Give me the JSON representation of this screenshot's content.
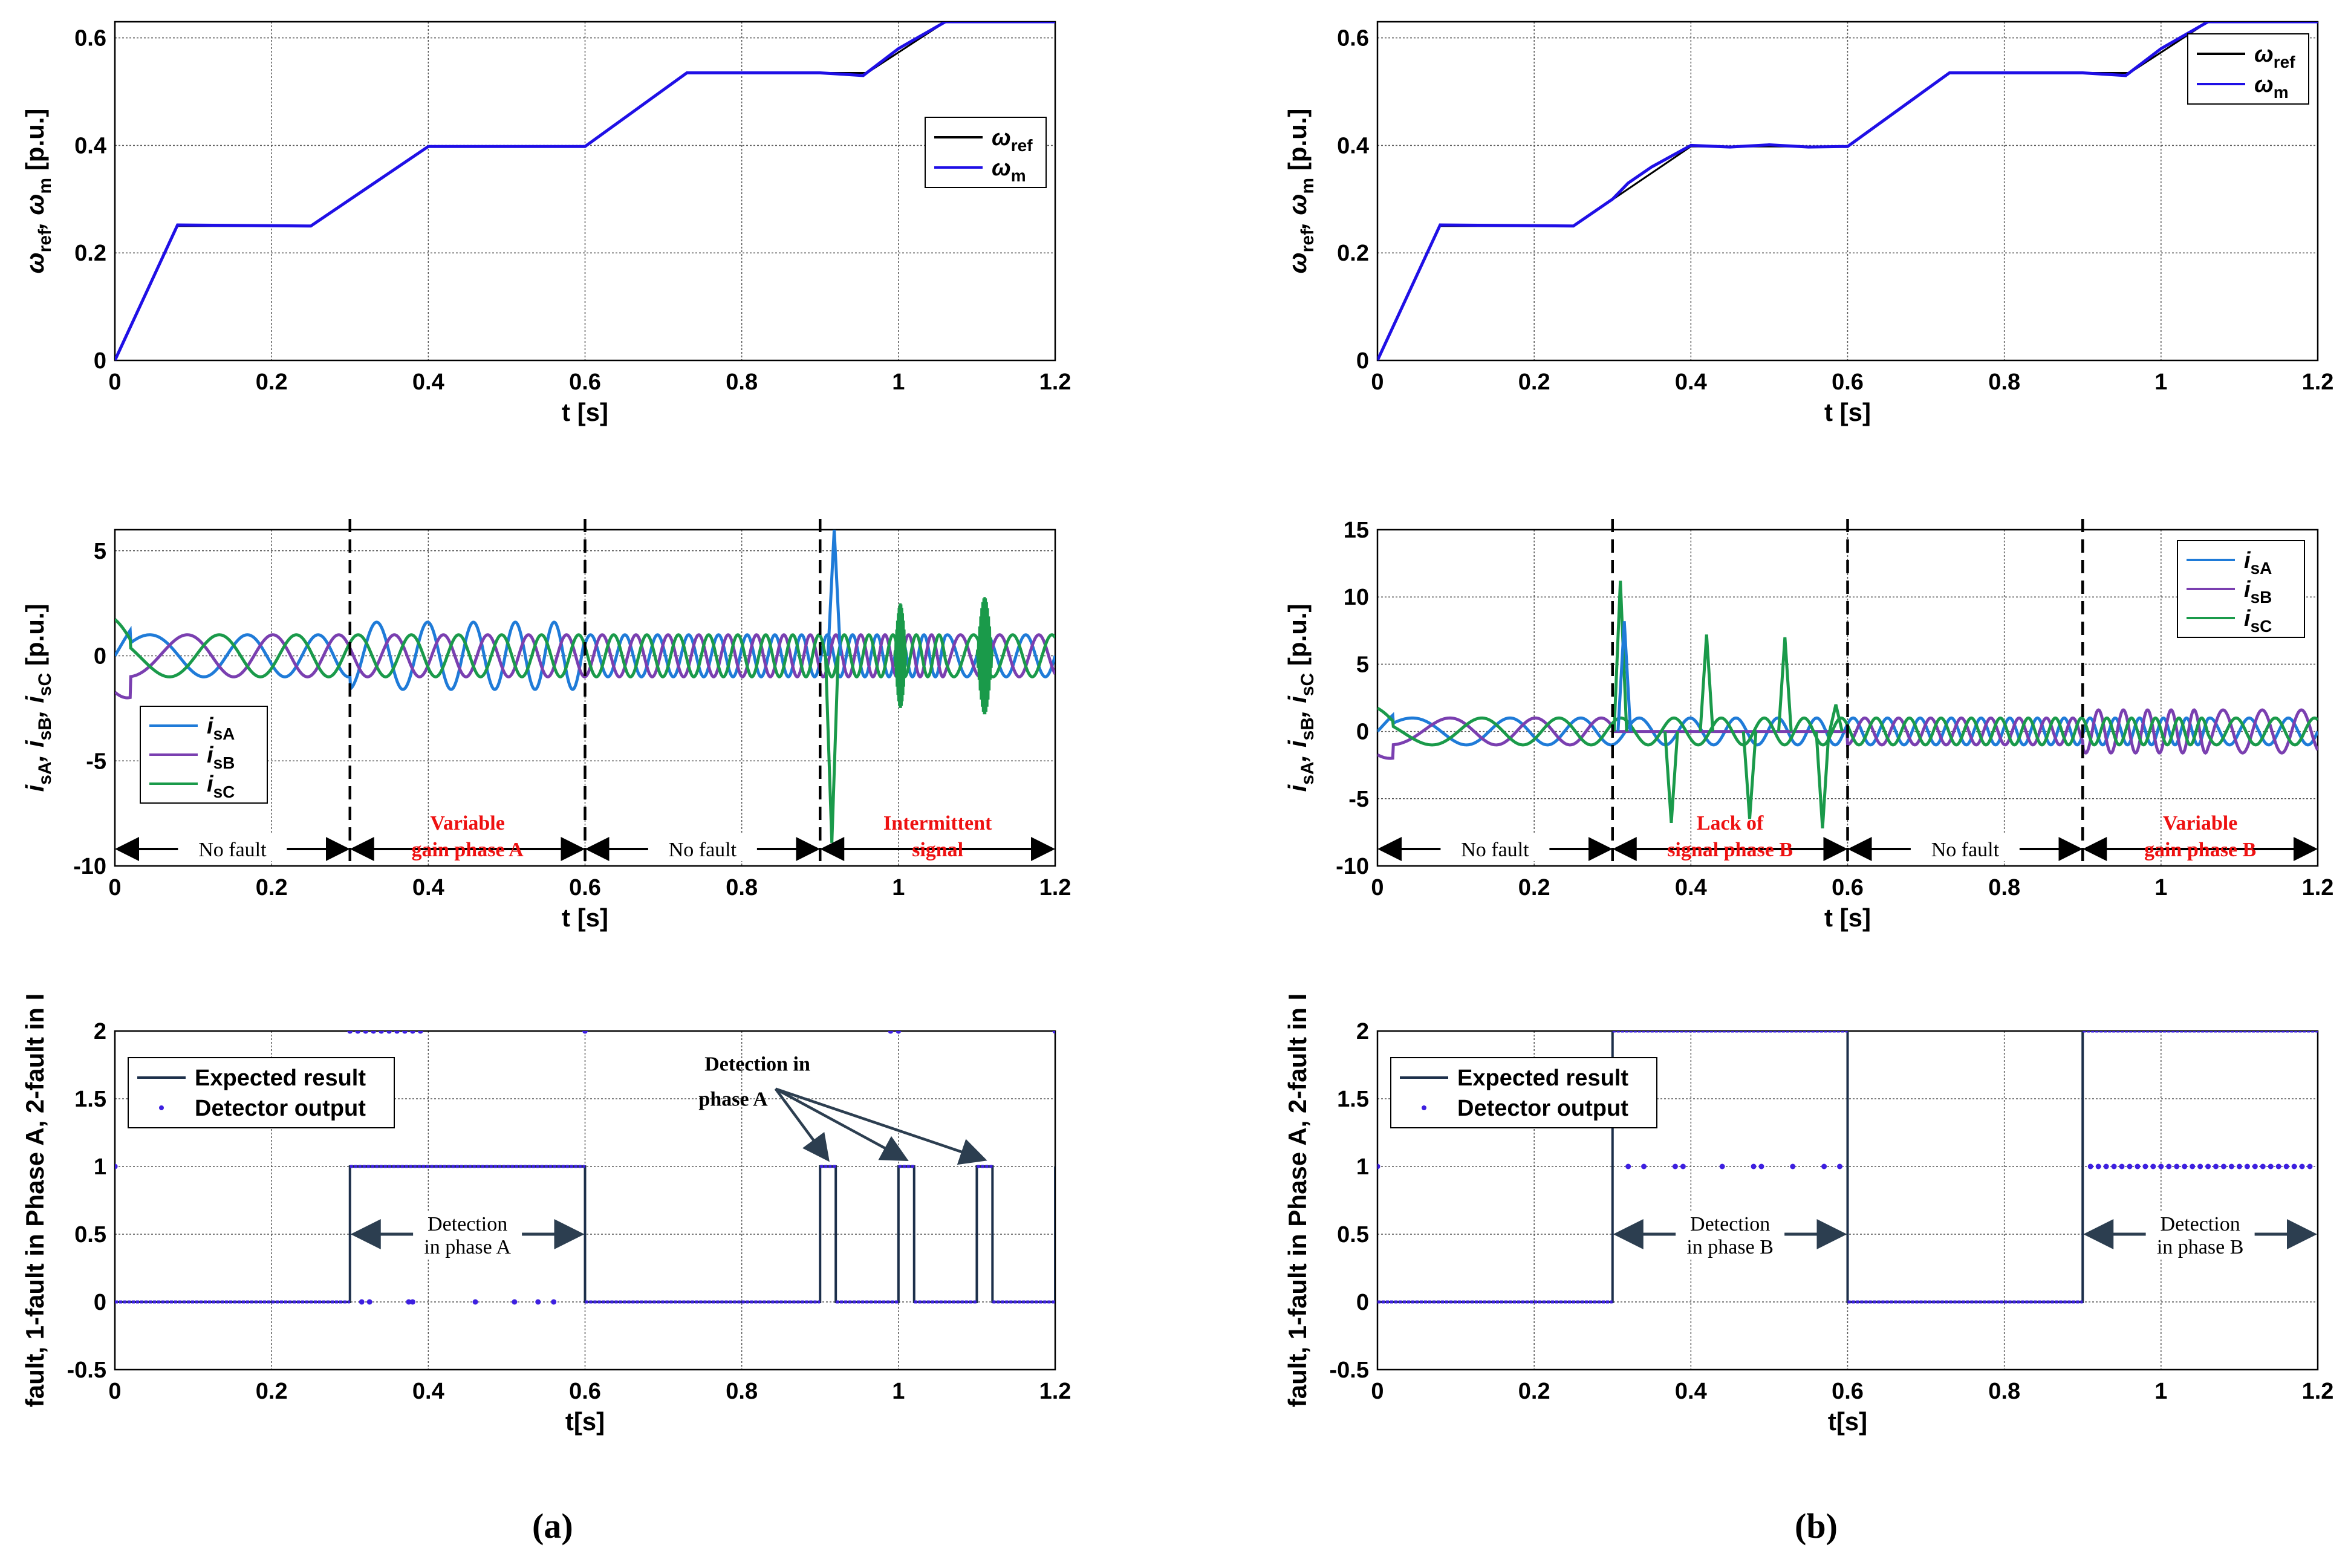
{
  "figure": {
    "panel_labels": [
      "(a)",
      "(b)"
    ]
  },
  "colors": {
    "ref": "#000000",
    "wm": "#1f0fe6",
    "isA": "#1f7bd8",
    "isB": "#7a3fb0",
    "isC": "#1a9a4a",
    "expected": "#1c2f4a",
    "detector": "#3d1fe0",
    "annotation_red": "#ee1111",
    "grid": "#555555"
  },
  "chart_data": [
    {
      "id": "a-speed",
      "type": "line",
      "xlabel": "t [s]",
      "ylabel_parts": [
        "ω",
        "ref",
        ", ω",
        "m",
        " [p.u.]"
      ],
      "xlim": [
        0,
        1.2
      ],
      "ylim": [
        0,
        0.63
      ],
      "xticks": [
        0,
        0.2,
        0.4,
        0.6,
        0.8,
        1,
        1.2
      ],
      "xtick_labels": [
        "0",
        "0.2",
        "0.4",
        "0.6",
        "0.8",
        "1",
        "1.2"
      ],
      "yticks": [
        0,
        0.2,
        0.4,
        0.6
      ],
      "ytick_labels": [
        "0",
        "0.2",
        "0.4",
        "0.6"
      ],
      "legend_position": "center-right",
      "series": [
        {
          "name": "ω_ref",
          "legend_main": "ω",
          "legend_sub": "ref",
          "color_key": "ref",
          "x": [
            0,
            0.08,
            0.25,
            0.4,
            0.6,
            0.73,
            0.96,
            1.06,
            1.2
          ],
          "y": [
            0,
            0.25,
            0.25,
            0.398,
            0.398,
            0.535,
            0.535,
            0.63,
            0.63
          ]
        },
        {
          "name": "ω_m",
          "legend_main": "ω",
          "legend_sub": "m",
          "color_key": "wm",
          "x": [
            0,
            0.08,
            0.25,
            0.4,
            0.6,
            0.73,
            0.9,
            0.955,
            1.0,
            1.06,
            1.2
          ],
          "y": [
            0,
            0.252,
            0.25,
            0.398,
            0.398,
            0.535,
            0.535,
            0.53,
            0.58,
            0.63,
            0.63
          ]
        }
      ]
    },
    {
      "id": "a-current",
      "type": "line",
      "xlabel": "t [s]",
      "ylabel_parts": [
        "i",
        "sA",
        ", i",
        "sB",
        ", i",
        "sC",
        " [p.u.]"
      ],
      "xlim": [
        0,
        1.2
      ],
      "ylim": [
        -10,
        6
      ],
      "xticks": [
        0,
        0.2,
        0.4,
        0.6,
        0.8,
        1,
        1.2
      ],
      "xtick_labels": [
        "0",
        "0.2",
        "0.4",
        "0.6",
        "0.8",
        "1",
        "1.2"
      ],
      "yticks": [
        -10,
        -5,
        0,
        5
      ],
      "ytick_labels": [
        "-10",
        "-5",
        "0",
        "5"
      ],
      "legend_position": "bottom-left",
      "waveform": {
        "freq_base": 5,
        "freq_gain": 15,
        "amplitude": 1.0
      },
      "events": [
        {
          "kind": "spike_down",
          "t": 0.915,
          "series": 2,
          "value": -8.9
        },
        {
          "kind": "spike_up",
          "t": 0.918,
          "series": 0,
          "value": 6.0
        },
        {
          "kind": "noise",
          "t0": 0.995,
          "t1": 1.01,
          "series": 2,
          "amp": 2.5
        },
        {
          "kind": "noise",
          "t0": 1.1,
          "t1": 1.12,
          "series": 2,
          "amp": 2.8
        }
      ],
      "fault_lines": [
        0.3,
        0.6,
        0.9
      ],
      "annotations": [
        {
          "text": [
            "No fault"
          ],
          "t0": 0,
          "t1": 0.3,
          "color_key": "ref"
        },
        {
          "text": [
            "Variable",
            "gain phase A"
          ],
          "t0": 0.3,
          "t1": 0.6,
          "color_key": "annotation_red"
        },
        {
          "text": [
            "No fault"
          ],
          "t0": 0.6,
          "t1": 0.9,
          "color_key": "ref"
        },
        {
          "text": [
            "Intermittent",
            "signal"
          ],
          "t0": 0.9,
          "t1": 1.2,
          "color_key": "annotation_red"
        }
      ],
      "series": [
        {
          "name": "i_sA",
          "legend_main": "i",
          "legend_sub": "sA",
          "color_key": "isA",
          "phase_deg": 0
        },
        {
          "name": "i_sB",
          "legend_main": "i",
          "legend_sub": "sB",
          "color_key": "isB",
          "phase_deg": -120
        },
        {
          "name": "i_sC",
          "legend_main": "i",
          "legend_sub": "sC",
          "color_key": "isC",
          "phase_deg": 120
        }
      ]
    },
    {
      "id": "a-fault",
      "type": "line",
      "xlabel": "t[s]",
      "ylabel_parts": [
        "fault, 1-fault in Phase A, 2-fault in I"
      ],
      "xlim": [
        0,
        1.2
      ],
      "ylim": [
        -0.5,
        2
      ],
      "xticks": [
        0,
        0.2,
        0.4,
        0.6,
        0.8,
        1,
        1.2
      ],
      "xtick_labels": [
        "0",
        "0.2",
        "0.4",
        "0.6",
        "0.8",
        "1",
        "1.2"
      ],
      "yticks": [
        -0.5,
        0,
        0.5,
        1,
        1.5,
        2
      ],
      "ytick_labels": [
        "-0.5",
        "0",
        "0.5",
        "1",
        "1.5",
        "2"
      ],
      "legend_position": "top-left",
      "series": [
        {
          "name": "Expected result",
          "color_key": "expected",
          "style": "line",
          "x": [
            0,
            0.3,
            0.3,
            0.6,
            0.6,
            0.9,
            0.9,
            0.92,
            0.92,
            1.0,
            1.0,
            1.02,
            1.02,
            1.1,
            1.1,
            1.12,
            1.12,
            1.2,
            1.2
          ],
          "y": [
            0,
            0,
            1,
            1,
            0,
            0,
            1,
            1,
            0,
            0,
            1,
            1,
            0,
            0,
            1,
            1,
            0,
            0,
            1
          ]
        },
        {
          "name": "Detector output",
          "color_key": "detector",
          "style": "dots",
          "segments": [
            {
              "x0": 0,
              "x1": 0.3,
              "y": 0
            },
            {
              "x0": 0.3,
              "x1": 0.6,
              "y": 1
            },
            {
              "x0": 0.6,
              "x1": 0.9,
              "y": 0
            },
            {
              "x0": 0.9,
              "x1": 0.92,
              "y": 1
            },
            {
              "x0": 0.92,
              "x1": 1.0,
              "y": 0
            },
            {
              "x0": 1.0,
              "x1": 1.02,
              "y": 1
            },
            {
              "x0": 1.02,
              "x1": 1.1,
              "y": 0
            },
            {
              "x0": 1.1,
              "x1": 1.12,
              "y": 1
            },
            {
              "x0": 1.12,
              "x1": 1.2,
              "y": 0
            }
          ],
          "scatter_x": [
            0,
            0.3,
            0.31,
            0.32,
            0.33,
            0.34,
            0.35,
            0.36,
            0.37,
            0.38,
            0.39,
            0.6,
            0.99,
            1.0,
            1.2,
            0.315,
            0.325,
            0.375,
            0.38,
            0.46,
            0.51,
            0.54,
            0.56,
            0.0
          ],
          "scatter_y": [
            1,
            2,
            2,
            2,
            2,
            2,
            2,
            2,
            2,
            2,
            2,
            2,
            2,
            2,
            2,
            0,
            0,
            0,
            0,
            0,
            0,
            0,
            0,
            1
          ]
        }
      ],
      "annotations": [
        {
          "text": [
            "Detection",
            "in phase A"
          ],
          "kind": "double_arrow",
          "t0": 0.3,
          "t1": 0.6,
          "y": 0.5
        },
        {
          "text": [
            "Detection in",
            "phase A"
          ],
          "kind": "pointer",
          "tx": 0.82,
          "ty": 1.6,
          "targets": [
            [
              0.91,
              1.05
            ],
            [
              1.01,
              1.05
            ],
            [
              1.11,
              1.05
            ]
          ]
        }
      ]
    },
    {
      "id": "b-speed",
      "type": "line",
      "xlabel": "t [s]",
      "ylabel_parts": [
        "ω",
        "ref",
        ", ω",
        "m",
        " [p.u.]"
      ],
      "xlim": [
        0,
        1.2
      ],
      "ylim": [
        0,
        0.63
      ],
      "xticks": [
        0,
        0.2,
        0.4,
        0.6,
        0.8,
        1,
        1.2
      ],
      "xtick_labels": [
        "0",
        "0.2",
        "0.4",
        "0.6",
        "0.8",
        "1",
        "1.2"
      ],
      "yticks": [
        0,
        0.2,
        0.4,
        0.6
      ],
      "ytick_labels": [
        "0",
        "0.2",
        "0.4",
        "0.6"
      ],
      "legend_position": "top-right",
      "series": [
        {
          "name": "ω_ref",
          "legend_main": "ω",
          "legend_sub": "ref",
          "color_key": "ref",
          "x": [
            0,
            0.08,
            0.25,
            0.4,
            0.6,
            0.73,
            0.96,
            1.06,
            1.2
          ],
          "y": [
            0,
            0.25,
            0.25,
            0.398,
            0.398,
            0.535,
            0.535,
            0.63,
            0.63
          ]
        },
        {
          "name": "ω_m",
          "legend_main": "ω",
          "legend_sub": "m",
          "color_key": "wm",
          "x": [
            0,
            0.08,
            0.25,
            0.3,
            0.32,
            0.35,
            0.4,
            0.45,
            0.5,
            0.55,
            0.6,
            0.73,
            0.9,
            0.955,
            1.0,
            1.06,
            1.2
          ],
          "y": [
            0,
            0.252,
            0.25,
            0.3,
            0.33,
            0.36,
            0.4,
            0.397,
            0.401,
            0.397,
            0.398,
            0.535,
            0.535,
            0.53,
            0.58,
            0.63,
            0.63
          ]
        }
      ]
    },
    {
      "id": "b-current",
      "type": "line",
      "xlabel": "t [s]",
      "ylabel_parts": [
        "i",
        "sA",
        ", i",
        "sB",
        ", i",
        "sC",
        " [p.u.]"
      ],
      "xlim": [
        0,
        1.2
      ],
      "ylim": [
        -10,
        15
      ],
      "xticks": [
        0,
        0.2,
        0.4,
        0.6,
        0.8,
        1,
        1.2
      ],
      "xtick_labels": [
        "0",
        "0.2",
        "0.4",
        "0.6",
        "0.8",
        "1",
        "1.2"
      ],
      "yticks": [
        -10,
        -5,
        0,
        5,
        10,
        15
      ],
      "ytick_labels": [
        "-10",
        "-5",
        "0",
        "5",
        "10",
        "15"
      ],
      "legend_position": "top-right",
      "waveform": {
        "freq_base": 5,
        "freq_gain": 15,
        "amplitude": 1.0
      },
      "events": [
        {
          "kind": "pulse",
          "t": 0.31,
          "series": 2,
          "value": 11.2
        },
        {
          "kind": "pulse",
          "t": 0.315,
          "series": 0,
          "value": 8.2
        },
        {
          "kind": "pulse",
          "t": 0.42,
          "series": 2,
          "value": 7.2
        },
        {
          "kind": "pulse",
          "t": 0.52,
          "series": 2,
          "value": 7.0
        },
        {
          "kind": "pulse",
          "t": 0.585,
          "series": 2,
          "value": 2.0
        },
        {
          "kind": "pulse_down",
          "t": 0.375,
          "series": 2,
          "value": -6.8
        },
        {
          "kind": "pulse_down",
          "t": 0.475,
          "series": 2,
          "value": -6.5
        },
        {
          "kind": "pulse_down",
          "t": 0.568,
          "series": 2,
          "value": -7.2
        }
      ],
      "fault_lines": [
        0.3,
        0.6,
        0.9
      ],
      "annotations": [
        {
          "text": [
            "No fault"
          ],
          "t0": 0,
          "t1": 0.3,
          "color_key": "ref"
        },
        {
          "text": [
            "Lack of",
            "signal phase B"
          ],
          "t0": 0.3,
          "t1": 0.6,
          "color_key": "annotation_red"
        },
        {
          "text": [
            "No fault"
          ],
          "t0": 0.6,
          "t1": 0.9,
          "color_key": "ref"
        },
        {
          "text": [
            "Variable",
            "gain phase B"
          ],
          "t0": 0.9,
          "t1": 1.2,
          "color_key": "annotation_red"
        }
      ],
      "series": [
        {
          "name": "i_sA",
          "legend_main": "i",
          "legend_sub": "sA",
          "color_key": "isA",
          "phase_deg": 0
        },
        {
          "name": "i_sB",
          "legend_main": "i",
          "legend_sub": "sB",
          "color_key": "isB",
          "phase_deg": -120
        },
        {
          "name": "i_sC",
          "legend_main": "i",
          "legend_sub": "sC",
          "color_key": "isC",
          "phase_deg": 120
        }
      ]
    },
    {
      "id": "b-fault",
      "type": "line",
      "xlabel": "t[s]",
      "ylabel_parts": [
        "fault, 1-fault in Phase A, 2-fault in I"
      ],
      "xlim": [
        0,
        1.2
      ],
      "ylim": [
        -0.5,
        2
      ],
      "xticks": [
        0,
        0.2,
        0.4,
        0.6,
        0.8,
        1,
        1.2
      ],
      "xtick_labels": [
        "0",
        "0.2",
        "0.4",
        "0.6",
        "0.8",
        "1",
        "1.2"
      ],
      "yticks": [
        -0.5,
        0,
        0.5,
        1,
        1.5,
        2
      ],
      "ytick_labels": [
        "-0.5",
        "0",
        "0.5",
        "1",
        "1.5",
        "2"
      ],
      "legend_position": "top-left",
      "series": [
        {
          "name": "Expected result",
          "color_key": "expected",
          "style": "line",
          "x": [
            0,
            0.3,
            0.3,
            0.6,
            0.6,
            0.9,
            0.9,
            1.2
          ],
          "y": [
            0,
            0,
            2,
            2,
            0,
            0,
            2,
            2
          ]
        },
        {
          "name": "Detector output",
          "color_key": "detector",
          "style": "dots",
          "segments": [
            {
              "x0": 0,
              "x1": 0.3,
              "y": 0
            },
            {
              "x0": 0.3,
              "x1": 0.6,
              "y": 2
            },
            {
              "x0": 0.6,
              "x1": 0.9,
              "y": 0
            },
            {
              "x0": 0.9,
              "x1": 1.2,
              "y": 2
            }
          ],
          "scatter_x": [
            0.0,
            0.32,
            0.34,
            0.38,
            0.39,
            0.44,
            0.48,
            0.49,
            0.53,
            0.57,
            0.59,
            0.91,
            0.92,
            0.93,
            0.94,
            0.95,
            0.96,
            0.97,
            0.98,
            0.99,
            1.0,
            1.01,
            1.02,
            1.03,
            1.04,
            1.05,
            1.06,
            1.07,
            1.08,
            1.09,
            1.1,
            1.11,
            1.12,
            1.13,
            1.14,
            1.15,
            1.16,
            1.17,
            1.18,
            1.19
          ],
          "scatter_y": [
            1,
            1,
            1,
            1,
            1,
            1,
            1,
            1,
            1,
            1,
            1,
            1,
            1,
            1,
            1,
            1,
            1,
            1,
            1,
            1,
            1,
            1,
            1,
            1,
            1,
            1,
            1,
            1,
            1,
            1,
            1,
            1,
            1,
            1,
            1,
            1,
            1,
            1,
            1,
            1
          ]
        }
      ],
      "annotations": [
        {
          "text": [
            "Detection",
            "in phase B"
          ],
          "kind": "double_arrow",
          "t0": 0.3,
          "t1": 0.6,
          "y": 0.5
        },
        {
          "text": [
            "Detection",
            "in phase B"
          ],
          "kind": "double_arrow",
          "t0": 0.9,
          "t1": 1.2,
          "y": 0.5
        }
      ]
    }
  ]
}
